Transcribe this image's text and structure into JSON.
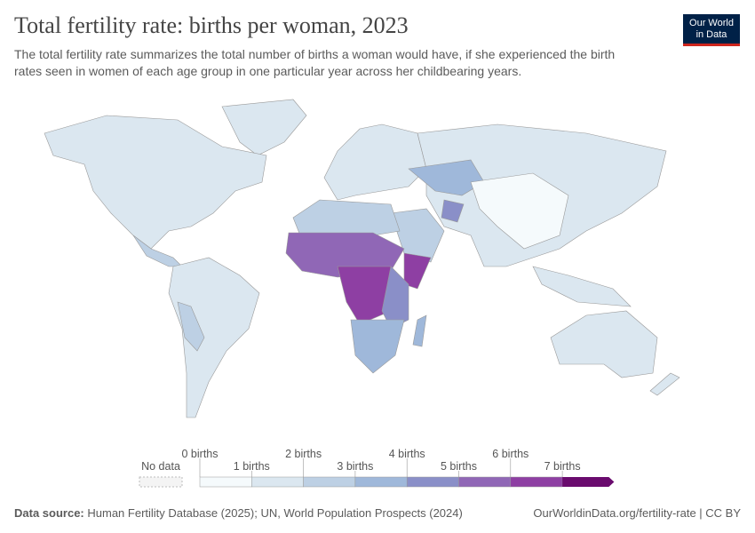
{
  "header": {
    "title": "Total fertility rate: births per woman, 2023",
    "subtitle": [
      "The total fertility rate summarizes the total number of births a woman would have, if she experienced the birth",
      "rates seen in women of each age group in one particular year across her childbearing years."
    ],
    "logo": [
      "Our World",
      "in Data"
    ]
  },
  "legend": {
    "no_data": "No data",
    "labels": [
      "0 births",
      "1 births",
      "2 births",
      "3 births",
      "4 births",
      "5 births",
      "6 births",
      "7 births"
    ],
    "colors": [
      "#f5fafc",
      "#dbe7f0",
      "#bdd0e4",
      "#9fb8da",
      "#8a8fc8",
      "#9067b6",
      "#8e3fa3",
      "#6a0b6e"
    ]
  },
  "footer": {
    "source_label": "Data source:",
    "source": "Human Fertility Database (2025); UN, World Population Prospects (2024)",
    "credit": "OurWorldinData.org/fertility-rate | CC BY"
  }
}
